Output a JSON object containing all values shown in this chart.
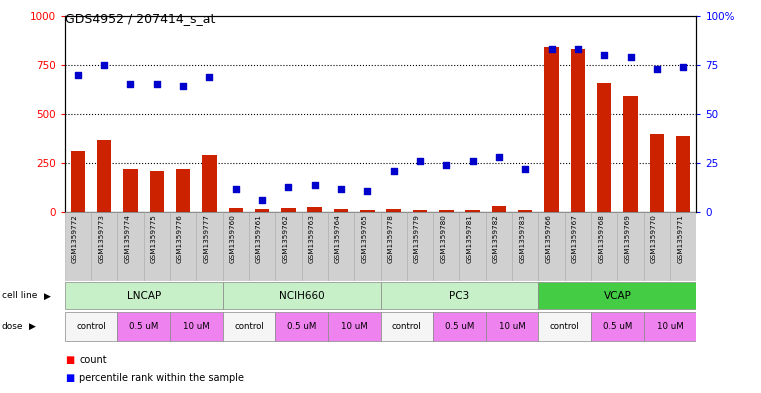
{
  "title": "GDS4952 / 207414_s_at",
  "samples": [
    "GSM1359772",
    "GSM1359773",
    "GSM1359774",
    "GSM1359775",
    "GSM1359776",
    "GSM1359777",
    "GSM1359760",
    "GSM1359761",
    "GSM1359762",
    "GSM1359763",
    "GSM1359764",
    "GSM1359765",
    "GSM1359778",
    "GSM1359779",
    "GSM1359780",
    "GSM1359781",
    "GSM1359782",
    "GSM1359783",
    "GSM1359766",
    "GSM1359767",
    "GSM1359768",
    "GSM1359769",
    "GSM1359770",
    "GSM1359771"
  ],
  "counts": [
    310,
    370,
    220,
    210,
    220,
    290,
    20,
    15,
    20,
    25,
    15,
    10,
    15,
    12,
    10,
    12,
    30,
    12,
    840,
    830,
    660,
    590,
    400,
    390
  ],
  "percentiles": [
    70,
    75,
    65,
    65,
    64,
    69,
    12,
    6,
    13,
    14,
    12,
    11,
    21,
    26,
    24,
    26,
    28,
    22,
    83,
    83,
    80,
    79,
    73,
    74
  ],
  "cell_lines": [
    {
      "label": "LNCAP",
      "start": 0,
      "end": 6,
      "color": "#c8f0c8"
    },
    {
      "label": "NCIH660",
      "start": 6,
      "end": 12,
      "color": "#c8f0c8"
    },
    {
      "label": "PC3",
      "start": 12,
      "end": 18,
      "color": "#c8f0c8"
    },
    {
      "label": "VCAP",
      "start": 18,
      "end": 24,
      "color": "#44cc44"
    }
  ],
  "doses": [
    {
      "label": "control",
      "start": 0,
      "end": 2,
      "color": "#f5f5f5"
    },
    {
      "label": "0.5 uM",
      "start": 2,
      "end": 4,
      "color": "#ee82ee"
    },
    {
      "label": "10 uM",
      "start": 4,
      "end": 6,
      "color": "#ee82ee"
    },
    {
      "label": "control",
      "start": 6,
      "end": 8,
      "color": "#f5f5f5"
    },
    {
      "label": "0.5 uM",
      "start": 8,
      "end": 10,
      "color": "#ee82ee"
    },
    {
      "label": "10 uM",
      "start": 10,
      "end": 12,
      "color": "#ee82ee"
    },
    {
      "label": "control",
      "start": 12,
      "end": 14,
      "color": "#f5f5f5"
    },
    {
      "label": "0.5 uM",
      "start": 14,
      "end": 16,
      "color": "#ee82ee"
    },
    {
      "label": "10 uM",
      "start": 16,
      "end": 18,
      "color": "#ee82ee"
    },
    {
      "label": "control",
      "start": 18,
      "end": 20,
      "color": "#f5f5f5"
    },
    {
      "label": "0.5 uM",
      "start": 20,
      "end": 22,
      "color": "#ee82ee"
    },
    {
      "label": "10 uM",
      "start": 22,
      "end": 24,
      "color": "#ee82ee"
    }
  ],
  "bar_color": "#cc2200",
  "dot_color": "#0000cc",
  "ylim_left": [
    0,
    1000
  ],
  "ylim_right": [
    0,
    100
  ],
  "yticks_left": [
    0,
    250,
    500,
    750,
    1000
  ],
  "yticks_right": [
    0,
    25,
    50,
    75,
    100
  ],
  "grid_values": [
    250,
    500,
    750
  ],
  "label_bg_color": "#d0d0d0",
  "label_border_color": "#aaaaaa"
}
